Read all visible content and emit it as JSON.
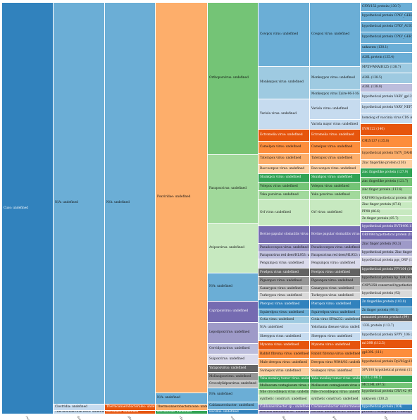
{
  "chart_data": {
    "type": "icicle",
    "columns": [
      "",
      "",
      "",
      "",
      "",
      "",
      "",
      ""
    ],
    "levels": [
      [
        {
          "label": "Cuss: undefined",
          "value": 100,
          "color": "#3182bd"
        }
      ],
      [
        {
          "label": "N/A: undefined",
          "value": 97.6,
          "color": "#6baed6"
        },
        {
          "label": "Clostridia: undefined",
          "value": 1.6,
          "color": "#c6dbef"
        },
        {
          "label": "Thermoanaerobacteria: undefined",
          "value": 0.8,
          "color": "#c6dbef"
        }
      ],
      [
        {
          "label": "N/A: undefined",
          "value": 97.6,
          "color": "#6baed6"
        },
        {
          "label": "Thermoanaerobacterales: undefined",
          "value": 1.6,
          "color": "#e6550d"
        },
        {
          "label": "Bacillales: undefined",
          "value": 0.8,
          "color": "#e6550d"
        }
      ],
      [
        {
          "label": "Poxviridae: undefined",
          "value": 94.8,
          "color": "#fdae6b"
        },
        {
          "label": "N/A: undefined",
          "value": 2.8,
          "color": "#6baed6"
        },
        {
          "label": "Thermoanaerobacteraceae: undefined",
          "value": 1.6,
          "color": "#fdae6b"
        },
        {
          "label": "Bacillaceae: undefined",
          "value": 0.8,
          "color": "#31a354"
        }
      ],
      [
        {
          "label": "Orthopoxvirus: undefined",
          "value": 30.2,
          "color": "#74c476"
        },
        {
          "label": "Parapoxvirus: undefined",
          "value": 13.7,
          "color": "#a1d99b"
        },
        {
          "label": "Avipoxvirus: undefined",
          "value": 9.8,
          "color": "#c7e9c0"
        },
        {
          "label": "N/A: undefined",
          "value": 5.6,
          "color": "#6baed6"
        },
        {
          "label": "Capripoxvirus: undefined",
          "value": 4.2,
          "color": "#756bb1"
        },
        {
          "label": "Leporipoxvirus: undefined",
          "value": 4.2,
          "color": "#9e9ac8"
        },
        {
          "label": "Cervidpoxvirus: undefined",
          "value": 2.1,
          "color": "#bcbddc"
        },
        {
          "label": "Suipoxvirus: undefined",
          "value": 2.1,
          "color": "#dadaeb"
        },
        {
          "label": "Yatapoxvirus: undefined",
          "value": 1.6,
          "color": "#636363"
        },
        {
          "label": "Mollusipoxvirus: undefined",
          "value": 1.6,
          "color": "#969696"
        },
        {
          "label": "Crocodylidpoxvirus: undefined",
          "value": 1.4,
          "color": "#bdbdbd"
        },
        {
          "label": "N/A: undefined",
          "value": 2.8,
          "color": "#6baed6"
        },
        {
          "label": "Caldanaerobacter: undefined",
          "value": 1.6,
          "color": "#6baed6"
        },
        {
          "label": "Bacillus: undefined",
          "value": 0.8,
          "color": "#3182bd"
        }
      ],
      [
        {
          "label": "Cowpox virus: undefined",
          "value": 15.4,
          "color": "#6baed6"
        },
        {
          "label": "Monkeypox virus: undefined",
          "value": 7.7,
          "color": "#9ecae1"
        },
        {
          "label": "Variola virus: undefined",
          "value": 7.4,
          "color": "#c6dbef"
        },
        {
          "label": "Ectromelia virus: undefined",
          "value": 2.8,
          "color": "#e6550d"
        },
        {
          "label": "Camelpox virus: undefined",
          "value": 2.8,
          "color": "#fd8d3c"
        },
        {
          "label": "Taterapox virus: undefined",
          "value": 2.8,
          "color": "#fdae6b"
        },
        {
          "label": "Raccoonpox virus: undefined",
          "value": 2.1,
          "color": "#fdd0a2"
        },
        {
          "label": "Skunkpox virus: undefined",
          "value": 2.1,
          "color": "#31a354"
        },
        {
          "label": "Volepox virus: undefined",
          "value": 2.1,
          "color": "#74c476"
        },
        {
          "label": "Yoka poxvirus: undefined",
          "value": 2.1,
          "color": "#a1d99b"
        },
        {
          "label": "Orf virus: undefined",
          "value": 6.3,
          "color": "#c7e9c0"
        },
        {
          "label": "Bovine papular stomatitis virus: undefined",
          "value": 4.2,
          "color": "#756bb1"
        },
        {
          "label": "Pseudocowpox virus: undefined",
          "value": 2.1,
          "color": "#9e9ac8"
        },
        {
          "label": "Parapoxvirus red deer/HL953: undefined",
          "value": 1.7,
          "color": "#bcbddc"
        },
        {
          "label": "Penguinpox virus: undefined",
          "value": 2.1,
          "color": "#dadaeb"
        },
        {
          "label": "Fowlpox virus: undefined",
          "value": 2.1,
          "color": "#636363"
        },
        {
          "label": "Pigeonpox virus: undefined",
          "value": 2.1,
          "color": "#969696"
        },
        {
          "label": "Canarypox virus: undefined",
          "value": 1.6,
          "color": "#bdbdbd"
        },
        {
          "label": "Turkeypox virus: undefined",
          "value": 1.9,
          "color": "#d9d9d9"
        },
        {
          "label": "Pteropox virus: undefined",
          "value": 2.1,
          "color": "#3182bd"
        },
        {
          "label": "Squirrelpox virus: undefined",
          "value": 1.8,
          "color": "#6baed6"
        },
        {
          "label": "Cotia virus: undefined",
          "value": 1.7,
          "color": "#9ecae1"
        },
        {
          "label": "N/A: undefined",
          "value": 2.1,
          "color": "#c6dbef"
        },
        {
          "label": "Sheeppox virus: undefined",
          "value": 2.1,
          "color": "#c6dbef"
        },
        {
          "label": "Myxoma virus: undefined",
          "value": 2.1,
          "color": "#e6550d"
        },
        {
          "label": "Rabbit fibroma virus: undefined",
          "value": 2.1,
          "color": "#fd8d3c"
        },
        {
          "label": "Mule deerpox virus: undefined",
          "value": 2.1,
          "color": "#fdae6b"
        },
        {
          "label": "Swinepox virus: undefined",
          "value": 2.1,
          "color": "#fdd0a2"
        },
        {
          "label": "Yaba monkey tumor virus: undefined",
          "value": 1.6,
          "color": "#31a354"
        },
        {
          "label": "Molluscum contagiosum virus: undefined",
          "value": 1.6,
          "color": "#74c476"
        },
        {
          "label": "Nile crocodilepox virus: undefined",
          "value": 1.4,
          "color": "#a1d99b"
        },
        {
          "label": "synthetic construct: undefined",
          "value": 2.1,
          "color": "#c7e9c0"
        },
        {
          "label": "Caldanaerobacter sp.: undefined",
          "value": 1.6,
          "color": "#756bb1"
        },
        {
          "label": "Bacillus methanolicus: undefined",
          "value": 0.8,
          "color": "#9e9ac8"
        }
      ],
      [
        {
          "label": "Cowpox virus: undefined",
          "value": 15.4,
          "color": "#6baed6"
        },
        {
          "label": "Monkeypox virus: undefined",
          "value": 5.6,
          "color": "#9ecae1"
        },
        {
          "label": "Monkeypox virus Zaire-96-I-16: undefined",
          "value": 2.1,
          "color": "#9ecae1"
        },
        {
          "label": "Variola virus: undefined",
          "value": 4.9,
          "color": "#c6dbef"
        },
        {
          "label": "Variola major virus: undefined",
          "value": 2.5,
          "color": "#c6dbef"
        },
        {
          "label": "Ectromelia virus: undefined",
          "value": 2.8,
          "color": "#e6550d"
        },
        {
          "label": "Camelpox virus: undefined",
          "value": 2.8,
          "color": "#fd8d3c"
        },
        {
          "label": "Taterapox virus: undefined",
          "value": 2.8,
          "color": "#fdae6b"
        },
        {
          "label": "Raccoonpox virus: undefined",
          "value": 2.1,
          "color": "#fdd0a2"
        },
        {
          "label": "Skunkpox virus: undefined",
          "value": 2.1,
          "color": "#31a354"
        },
        {
          "label": "Volepox virus: undefined",
          "value": 2.1,
          "color": "#74c476"
        },
        {
          "label": "Yoka poxvirus: undefined",
          "value": 2.1,
          "color": "#a1d99b"
        },
        {
          "label": "Orf virus: undefined",
          "value": 6.3,
          "color": "#c7e9c0"
        },
        {
          "label": "Bovine papular stomatitis virus: undefined",
          "value": 4.2,
          "color": "#756bb1"
        },
        {
          "label": "Pseudocowpox virus: undefined",
          "value": 2.1,
          "color": "#9e9ac8"
        },
        {
          "label": "Parapoxvirus red deer/HL953: undefined",
          "value": 1.7,
          "color": "#bcbddc"
        },
        {
          "label": "Penguinpox virus: undefined",
          "value": 2.1,
          "color": "#dadaeb"
        },
        {
          "label": "Fowlpox virus: undefined",
          "value": 2.1,
          "color": "#636363"
        },
        {
          "label": "Pigeonpox virus: undefined",
          "value": 2.1,
          "color": "#969696"
        },
        {
          "label": "Canarypox virus: undefined",
          "value": 1.6,
          "color": "#bdbdbd"
        },
        {
          "label": "Turkeypox virus: undefined",
          "value": 1.9,
          "color": "#d9d9d9"
        },
        {
          "label": "Pteropox virus: undefined",
          "value": 2.1,
          "color": "#3182bd"
        },
        {
          "label": "Squirrelpox virus: undefined",
          "value": 1.8,
          "color": "#6baed6"
        },
        {
          "label": "Cotia virus SPAn232: undefined",
          "value": 1.7,
          "color": "#9ecae1"
        },
        {
          "label": "Yokohama disease virus: undefined",
          "value": 2.1,
          "color": "#c6dbef"
        },
        {
          "label": "Sheeppox virus: undefined",
          "value": 2.1,
          "color": "#c6dbef"
        },
        {
          "label": "Myxoma virus: undefined",
          "value": 2.1,
          "color": "#e6550d"
        },
        {
          "label": "Rabbit fibroma virus: undefined",
          "value": 2.1,
          "color": "#fd8d3c"
        },
        {
          "label": "Deerpox virus W848/83: undefined",
          "value": 2.1,
          "color": "#fdae6b"
        },
        {
          "label": "Swinepox virus: undefined",
          "value": 2.1,
          "color": "#fdd0a2"
        },
        {
          "label": "Yaba monkey tumor virus: undefined",
          "value": 1.6,
          "color": "#31a354"
        },
        {
          "label": "Molluscum contagiosum virus subtype 1: undefined",
          "value": 1.6,
          "color": "#74c476"
        },
        {
          "label": "Nile crocodilepox virus: undefined",
          "value": 1.4,
          "color": "#a1d99b"
        },
        {
          "label": "synthetic construct: undefined",
          "value": 2.1,
          "color": "#c7e9c0"
        },
        {
          "label": "Caldanaerobacter subterraneus: undefined",
          "value": 1.6,
          "color": "#756bb1"
        },
        {
          "label": "Bacillus methanolicus: undefined",
          "value": 0.8,
          "color": "#9e9ac8"
        }
      ],
      [
        {
          "label": "CPXV152 protein (130.7)",
          "value": 2.1,
          "color": "#6baed6"
        },
        {
          "label": "hypothetical protein CPXV_GER2002",
          "value": 2.4,
          "color": "#6baed6"
        },
        {
          "label": "hypothetical protein CPXV_AUS1999",
          "value": 2.4,
          "color": "#6baed6"
        },
        {
          "label": "hypothetical protein CPXV_GER1991",
          "value": 2.7,
          "color": "#6baed6"
        },
        {
          "label": "unknown (130.1)",
          "value": 2.2,
          "color": "#6baed6"
        },
        {
          "label": "A28L protein (135.4)",
          "value": 2.4,
          "color": "#6baed6"
        },
        {
          "label": "MPXV-WRAIR125 (138.7)",
          "value": 2.4,
          "color": "#9ecae1"
        },
        {
          "label": "A28L (138.5)",
          "value": 2.4,
          "color": "#9ecae1"
        },
        {
          "label": "A28L (138.8)",
          "value": 2.1,
          "color": "#bcbddc"
        },
        {
          "label": "hypothetical protein VARV_gp123 (1",
          "value": 2.5,
          "color": "#c6dbef"
        },
        {
          "label": "hypothetical protein VARV_NEP71",
          "value": 2.4,
          "color": "#c6dbef"
        },
        {
          "label": "homolog of vaccinia virus CDS A19",
          "value": 2.5,
          "color": "#c6dbef"
        },
        {
          "label": "EVM122 (140)",
          "value": 2.8,
          "color": "#e6550d"
        },
        {
          "label": "CMLV137 (135.8)",
          "value": 2.8,
          "color": "#fd8d3c"
        },
        {
          "label": "hypothetical protein TATV_DAH68",
          "value": 2.8,
          "color": "#fdae6b"
        },
        {
          "label": "Zinc fingerlike protein (130)",
          "value": 2.1,
          "color": "#fdd0a2"
        },
        {
          "label": "zinc fingerlike protein (127.9)",
          "value": 2.1,
          "color": "#31a354"
        },
        {
          "label": "zinc fingerlike protein (121.7)",
          "value": 2.1,
          "color": "#74c476"
        },
        {
          "label": "zinc finger protein (112.8)",
          "value": 2.1,
          "color": "#a1d99b"
        },
        {
          "label": "ORF096 hypothetical protein (88.2)",
          "value": 1.6,
          "color": "#c7e9c0"
        },
        {
          "label": "Zinc finger protein (87.6)",
          "value": 1.6,
          "color": "#c7e9c0"
        },
        {
          "label": "PP98 (86.6)",
          "value": 1.6,
          "color": "#c7e9c0"
        },
        {
          "label": "Zn finger protein (85.7)",
          "value": 1.6,
          "color": "#c7e9c0"
        },
        {
          "label": "hypothetical protein BVT8496.11_0",
          "value": 2.1,
          "color": "#756bb1"
        },
        {
          "label": "ORF098 hypothetical protein (102.1)",
          "value": 2.1,
          "color": "#756bb1"
        },
        {
          "label": "Zinc finger protein (93.3)",
          "value": 2.1,
          "color": "#9e9ac8"
        },
        {
          "label": "hypothetical protein: Zinc finger protein (92.1)",
          "value": 1.7,
          "color": "#bcbddc"
        },
        {
          "label": "hypothetical protein pgs_ORF (194.1)",
          "value": 2.1,
          "color": "#dadaeb"
        },
        {
          "label": "hypothetical protein FPV164 (109.6)",
          "value": 2.1,
          "color": "#636363"
        },
        {
          "label": "hypothetical protein hp_189 (98.9)",
          "value": 2.1,
          "color": "#969696"
        },
        {
          "label": "CNPV258 conserved hypothetical protein",
          "value": 1.6,
          "color": "#bdbdbd"
        },
        {
          "label": "hypothetical protein (92)",
          "value": 1.9,
          "color": "#d9d9d9"
        },
        {
          "label": "Zn fingerlike protein (103.0)",
          "value": 2.1,
          "color": "#3182bd"
        },
        {
          "label": "Zn finger protein (99.1)",
          "value": 1.8,
          "color": "#6baed6"
        },
        {
          "label": "unnamed protein product (99)",
          "value": 1.7,
          "color": "#636363"
        },
        {
          "label": "133L protein (113.7)",
          "value": 2.1,
          "color": "#c6dbef"
        },
        {
          "label": "hypothetical protein SPPV_106 (108.7)",
          "value": 2.1,
          "color": "#c6dbef"
        },
        {
          "label": "m139R (112.5)",
          "value": 2.1,
          "color": "#e6550d"
        },
        {
          "label": "gp139L (111)",
          "value": 2.1,
          "color": "#fd8d3c"
        },
        {
          "label": "hypothetical protein DpV83gp120 (108.4)",
          "value": 2.1,
          "color": "#fdae6b"
        },
        {
          "label": "SPV108 hypothetical protein (112.8)",
          "value": 2.1,
          "color": "#fdd0a2"
        },
        {
          "label": "121L (106.5)",
          "value": 1.6,
          "color": "#31a354"
        },
        {
          "label": "MC134L (97.5)",
          "value": 1.6,
          "color": "#74c476"
        },
        {
          "label": "hypothetical protein CRV142 (47)",
          "value": 1.4,
          "color": "#a1d99b"
        },
        {
          "label": "unknown (130.2)",
          "value": 2.1,
          "color": "#c7e9c0"
        },
        {
          "label": "hypothetical protein (104)",
          "value": 1.6,
          "color": "#3182bd"
        },
        {
          "label": "protein-L-isoaspartate O-methyltransferase",
          "value": 0.8,
          "color": "#9e9ac8"
        }
      ]
    ],
    "xtick_labels": [
      "root",
      "domain",
      "phylum",
      "class",
      "order",
      "family",
      "genus",
      "species"
    ]
  }
}
